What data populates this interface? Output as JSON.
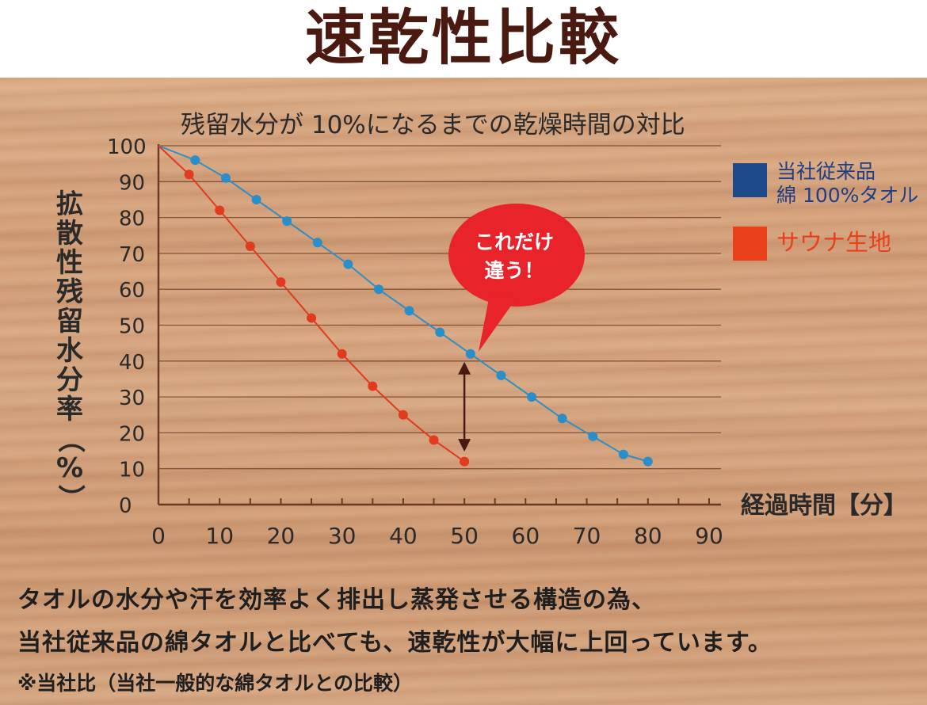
{
  "header": {
    "title": "速乾性比較"
  },
  "chart_data": {
    "type": "line",
    "title": "残留水分が 10%になるまでの乾燥時間の対比",
    "ylabel": "拡散性残留水分率（%）",
    "ylabel_chars": [
      "拡",
      "散",
      "性",
      "残",
      "留",
      "水",
      "分",
      "率",
      "（",
      "%",
      "）"
    ],
    "xlabel": "経過時間【分】",
    "xlim": [
      0,
      90
    ],
    "ylim": [
      0,
      100
    ],
    "xticks": [
      "0",
      "10",
      "20",
      "30",
      "40",
      "50",
      "60",
      "70",
      "80",
      "90"
    ],
    "yticks": [
      "0",
      "10",
      "20",
      "30",
      "40",
      "50",
      "60",
      "70",
      "80",
      "90",
      "100"
    ],
    "grid": true,
    "legend_position": "right",
    "series": [
      {
        "name": "当社従来品 綿 100%タオル",
        "legend_lines": [
          "当社従来品",
          "綿 100%タオル"
        ],
        "color": "#2f8fc4",
        "marker_color": "#2a8ec8",
        "legend_color": "#1e4a8c",
        "x": [
          0,
          6,
          11,
          16,
          21,
          26,
          31,
          36,
          41,
          46,
          51,
          56,
          61,
          66,
          71,
          76,
          80
        ],
        "y": [
          100,
          96,
          91,
          85,
          79,
          73,
          67,
          60,
          54,
          48,
          42,
          36,
          30,
          24,
          19,
          14,
          12
        ]
      },
      {
        "name": "サウナ生地",
        "legend_lines": [
          "サウナ生地"
        ],
        "color": "#e23a1e",
        "marker_color": "#e23a1e",
        "legend_color": "#e8401a",
        "x": [
          0,
          5,
          10,
          15,
          20,
          25,
          30,
          35,
          40,
          45,
          50
        ],
        "y": [
          100,
          92,
          82,
          72,
          62,
          52,
          42,
          33,
          25,
          18,
          12
        ]
      }
    ],
    "annotation": {
      "callout_lines": [
        "これだけ",
        "違う！"
      ],
      "callout_color": "#e8232a",
      "arrow_color": "#4a1a10",
      "arrow_x": 50,
      "arrow_from_y": 42,
      "arrow_to_y": 13
    }
  },
  "footer": {
    "line1": "タオルの水分や汗を効率よく排出し蒸発させる構造の為、",
    "line2": "当社従来品の綿タオルと比べても、速乾性が大幅に上回っています。",
    "note": "※当社比（当社一般的な綿タオルとの比較）"
  }
}
